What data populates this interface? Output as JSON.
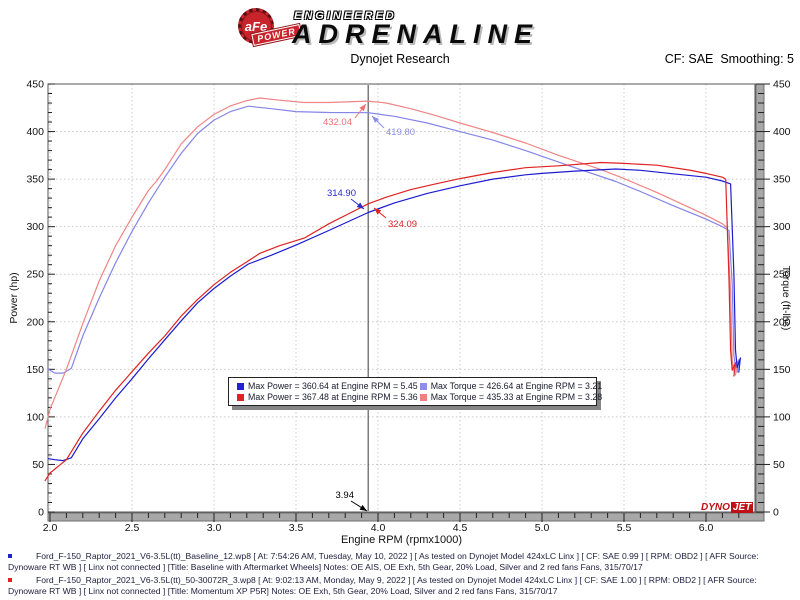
{
  "header": {
    "logo": {
      "circle_text": "aFe",
      "banner_text": "POWER",
      "line1": "ENGINEERED",
      "line2": "ADRENALINE"
    },
    "title": "Dynojet Research",
    "cf_text": "CF: SAE  Smoothing: 5"
  },
  "chart_data": {
    "type": "line",
    "title": "Dynojet Research",
    "xlabel": "Engine RPM (rpmx1000)",
    "ylabel_left": "Power (hp)",
    "ylabel_right": "Torque (ft-lbs)",
    "x_axis": {
      "min": 1.99,
      "max": 6.3,
      "tick_min": 2.0,
      "tick_max": 6.2,
      "major": 0.5,
      "minor": 0.1
    },
    "y_axis": {
      "min": 0,
      "max": 450,
      "major": 50,
      "minor": 10
    },
    "grid": true,
    "legend_position": "center",
    "cursor_rpm": 3.94,
    "series": [
      {
        "name": "Baseline Torque (ft-lbs)",
        "color": "#8585e8",
        "points": [
          [
            1.99,
            150
          ],
          [
            2.03,
            146
          ],
          [
            2.08,
            146
          ],
          [
            2.13,
            151
          ],
          [
            2.2,
            185
          ],
          [
            2.3,
            225
          ],
          [
            2.4,
            262
          ],
          [
            2.5,
            295
          ],
          [
            2.6,
            325
          ],
          [
            2.7,
            352
          ],
          [
            2.8,
            377
          ],
          [
            2.9,
            398
          ],
          [
            3.0,
            412
          ],
          [
            3.1,
            421
          ],
          [
            3.21,
            426.64
          ],
          [
            3.35,
            424
          ],
          [
            3.5,
            421
          ],
          [
            3.7,
            420
          ],
          [
            3.94,
            419.8
          ],
          [
            4.1,
            416
          ],
          [
            4.3,
            409
          ],
          [
            4.5,
            400
          ],
          [
            4.7,
            391
          ],
          [
            4.9,
            380
          ],
          [
            5.0,
            374
          ],
          [
            5.2,
            362
          ],
          [
            5.45,
            347.5
          ],
          [
            5.6,
            337
          ],
          [
            5.8,
            322
          ],
          [
            6.0,
            308
          ],
          [
            6.1,
            300
          ],
          [
            6.14,
            296
          ],
          [
            6.16,
            240
          ],
          [
            6.17,
            165
          ],
          [
            6.18,
            152
          ],
          [
            6.2,
            160
          ],
          [
            6.19,
            147
          ]
        ]
      },
      {
        "name": "Momentum XP Torque (ft-lbs)",
        "color": "#ef8585",
        "points": [
          [
            1.97,
            88
          ],
          [
            2.0,
            108
          ],
          [
            2.1,
            150
          ],
          [
            2.2,
            198
          ],
          [
            2.3,
            243
          ],
          [
            2.4,
            280
          ],
          [
            2.5,
            310
          ],
          [
            2.6,
            338
          ],
          [
            2.65,
            348
          ],
          [
            2.7,
            360
          ],
          [
            2.8,
            387
          ],
          [
            2.9,
            405
          ],
          [
            3.0,
            418
          ],
          [
            3.1,
            427
          ],
          [
            3.2,
            432.5
          ],
          [
            3.28,
            435.33
          ],
          [
            3.4,
            433
          ],
          [
            3.55,
            430.5
          ],
          [
            3.7,
            430.5
          ],
          [
            3.85,
            431.5
          ],
          [
            3.94,
            432.04
          ],
          [
            4.05,
            430
          ],
          [
            4.2,
            424
          ],
          [
            4.35,
            417
          ],
          [
            4.5,
            409
          ],
          [
            4.7,
            399
          ],
          [
            4.9,
            388
          ],
          [
            5.1,
            375
          ],
          [
            5.36,
            360
          ],
          [
            5.5,
            350.5
          ],
          [
            5.7,
            336
          ],
          [
            5.9,
            320
          ],
          [
            6.0,
            312
          ],
          [
            6.1,
            303
          ],
          [
            6.13,
            299
          ],
          [
            6.15,
            230
          ],
          [
            6.16,
            160
          ],
          [
            6.17,
            148
          ],
          [
            6.19,
            156
          ],
          [
            6.18,
            144
          ]
        ]
      },
      {
        "name": "Baseline Power (hp)",
        "color": "#1c1ccf",
        "points": [
          [
            1.99,
            56
          ],
          [
            2.03,
            55
          ],
          [
            2.08,
            54
          ],
          [
            2.13,
            57
          ],
          [
            2.2,
            77
          ],
          [
            2.3,
            98
          ],
          [
            2.4,
            120
          ],
          [
            2.5,
            140
          ],
          [
            2.6,
            161
          ],
          [
            2.7,
            181
          ],
          [
            2.8,
            201
          ],
          [
            2.9,
            220
          ],
          [
            3.0,
            235
          ],
          [
            3.1,
            248
          ],
          [
            3.21,
            260.7
          ],
          [
            3.35,
            270
          ],
          [
            3.5,
            280.6
          ],
          [
            3.7,
            296
          ],
          [
            3.94,
            314.9
          ],
          [
            4.1,
            325
          ],
          [
            4.3,
            335
          ],
          [
            4.5,
            343
          ],
          [
            4.7,
            350
          ],
          [
            4.9,
            354.5
          ],
          [
            5.0,
            356
          ],
          [
            5.2,
            358.4
          ],
          [
            5.45,
            360.64
          ],
          [
            5.6,
            359.3
          ],
          [
            5.8,
            355.6
          ],
          [
            6.0,
            352
          ],
          [
            6.1,
            348
          ],
          [
            6.15,
            345
          ],
          [
            6.17,
            250
          ],
          [
            6.18,
            170
          ],
          [
            6.19,
            152
          ],
          [
            6.21,
            162
          ],
          [
            6.2,
            147
          ]
        ]
      },
      {
        "name": "Momentum XP Power (hp)",
        "color": "#e02222",
        "points": [
          [
            1.97,
            33
          ],
          [
            2.0,
            41
          ],
          [
            2.1,
            55
          ],
          [
            2.2,
            83
          ],
          [
            2.3,
            106
          ],
          [
            2.4,
            128
          ],
          [
            2.5,
            147.5
          ],
          [
            2.6,
            167
          ],
          [
            2.65,
            176
          ],
          [
            2.7,
            185
          ],
          [
            2.8,
            206
          ],
          [
            2.9,
            223.5
          ],
          [
            3.0,
            239
          ],
          [
            3.1,
            252
          ],
          [
            3.2,
            263
          ],
          [
            3.28,
            272
          ],
          [
            3.4,
            280
          ],
          [
            3.55,
            288
          ],
          [
            3.7,
            303
          ],
          [
            3.85,
            316
          ],
          [
            3.94,
            324.09
          ],
          [
            4.05,
            331
          ],
          [
            4.2,
            339
          ],
          [
            4.35,
            345
          ],
          [
            4.5,
            350.5
          ],
          [
            4.7,
            357
          ],
          [
            4.9,
            362
          ],
          [
            5.1,
            364
          ],
          [
            5.36,
            367.48
          ],
          [
            5.5,
            366.5
          ],
          [
            5.7,
            364.6
          ],
          [
            5.9,
            359.5
          ],
          [
            6.0,
            356
          ],
          [
            6.1,
            352
          ],
          [
            6.12,
            350
          ],
          [
            6.14,
            245
          ],
          [
            6.15,
            170
          ],
          [
            6.16,
            149
          ],
          [
            6.18,
            157
          ],
          [
            6.17,
            143
          ]
        ]
      }
    ],
    "annotations": [
      {
        "label": "432.04",
        "rpm": 3.94,
        "value": 432.04,
        "color": "#ef7070"
      },
      {
        "label": "419.80",
        "rpm": 3.94,
        "value": 419.8,
        "color": "#8e8eea"
      },
      {
        "label": "314.90",
        "rpm": 3.94,
        "value": 314.9,
        "color": "#2a2ad0"
      },
      {
        "label": "324.09",
        "rpm": 3.94,
        "value": 324.09,
        "color": "#e02222"
      },
      {
        "label": "3.94",
        "rpm": 3.94,
        "value": 0,
        "color": "#000000"
      }
    ],
    "watermark": {
      "part1": "DYNO",
      "part2": "JET"
    }
  },
  "legend": {
    "items": [
      {
        "color": "#2222cf",
        "text": "Max Power = 360.64 at Engine RPM = 5.45"
      },
      {
        "color": "#8e8eea",
        "text": "Max Torque = 426.64 at Engine RPM = 3.21"
      },
      {
        "color": "#e02222",
        "text": "Max Power = 367.48 at Engine RPM = 5.36"
      },
      {
        "color": "#ef8080",
        "text": "Max Torque = 435.33 at Engine RPM = 3.28"
      }
    ]
  },
  "footer": {
    "runs": [
      {
        "bullet_color": "#2222cf",
        "text": "Ford_F-150_Raptor_2021_V6-3.5L(tt)_Baseline_12.wp8 [ At: 7:54:26 AM, Tuesday, May 10, 2022 ] [ As tested on Dynojet Model 424xLC Linx ] [ CF: SAE 0.99 ] [ RPM: OBD2 ] [ AFR Source: Dynoware RT WB ] [ Linx not connected ] [Title: Baseline with Aftermarket Wheels]  Notes: OE AIS, OE Exh, 5th Gear, 20% Load, Silver and 2 red fans Fans, 315/70/17"
      },
      {
        "bullet_color": "#e02222",
        "text": "Ford_F-150_Raptor_2021_V6-3.5L(tt)_50-30072R_3.wp8 [ At: 9:02:13 AM, Monday, May 9, 2022 ] [ As tested on Dynojet Model 424xLC Linx ] [ CF: SAE 1.00 ] [ RPM: OBD2 ] [ AFR Source: Dynoware RT WB ] [ Linx not connected ] [Title: Momentum XP P5R]  Notes: OE Exh, 5th Gear, 20% Load, Silver and 2 red fans Fans, 315/70/17"
      }
    ]
  }
}
